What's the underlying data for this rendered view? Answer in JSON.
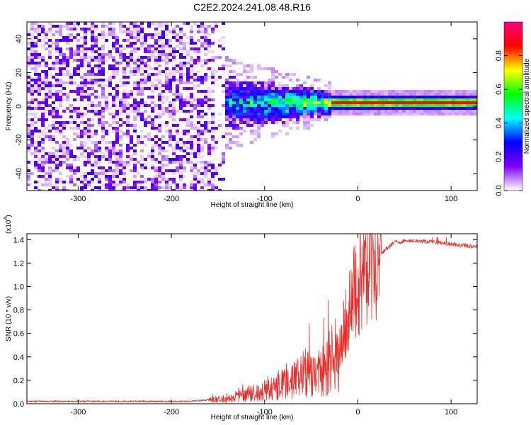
{
  "title": "C2E2.2024.241.08.48.R16",
  "chart_data": [
    {
      "type": "heatmap",
      "xlabel": "Height of straight line (km)",
      "ylabel": "Frequency (Hz)",
      "xlim": [
        -355,
        128
      ],
      "ylim": [
        -50,
        50
      ],
      "xticks": [
        -300,
        -200,
        -100,
        0,
        100
      ],
      "yticks": [
        -40,
        -20,
        0,
        20,
        40
      ],
      "colorbar": {
        "label": "Normalized spectral amplitude",
        "range": [
          0,
          1
        ],
        "ticks": [
          0.0,
          0.2,
          0.4,
          0.6,
          0.8
        ],
        "tick_labels": [
          "0.0",
          "0.2",
          "0.4",
          "0.6",
          "0.8"
        ],
        "colormap": [
          "#ffffff",
          "#8000ff",
          "#0000ff",
          "#00ffff",
          "#00ff00",
          "#ffff00",
          "#ff0000",
          "#ff0080"
        ]
      },
      "features": {
        "noise_region_x": [
          -355,
          -150
        ],
        "noise_amplitude": 0.1,
        "onset_x": -150,
        "band_broad_x": [
          -150,
          -30
        ],
        "band_center_hz": 2,
        "band_halfwidth_hz": [
          12,
          5
        ],
        "band_narrow_x": [
          -30,
          128
        ],
        "band_peak_amplitude": 0.95
      },
      "grid": false
    },
    {
      "type": "line",
      "xlabel": "Height of straight line (km)",
      "ylabel": "SNR (10 * v/v)",
      "y_scale_label": "(x10",
      "y_scale_exponent": "4",
      "xlim": [
        -355,
        128
      ],
      "ylim": [
        0,
        1.45
      ],
      "xticks": [
        -300,
        -200,
        -100,
        0,
        100
      ],
      "yticks": [
        0.0,
        0.2,
        0.4,
        0.6,
        0.8,
        1.0,
        1.2,
        1.4
      ],
      "ytick_labels": [
        "0.0",
        "0.2",
        "0.4",
        "0.6",
        "0.8",
        "1.0",
        "1.2",
        "1.4"
      ],
      "series": [
        {
          "color": "#e8302b",
          "trend_x": [
            -355,
            -180,
            -150,
            -120,
            -100,
            -80,
            -60,
            -40,
            -30,
            -20,
            -12,
            -6,
            0,
            10,
            20,
            30,
            40,
            60,
            80,
            100,
            128
          ],
          "trend_y": [
            0.02,
            0.02,
            0.04,
            0.08,
            0.13,
            0.2,
            0.27,
            0.33,
            0.38,
            0.5,
            0.75,
            0.95,
            1.05,
            1.15,
            1.25,
            1.32,
            1.38,
            1.39,
            1.38,
            1.36,
            1.34
          ],
          "max_y": 1.45
        }
      ],
      "grid": false
    }
  ]
}
